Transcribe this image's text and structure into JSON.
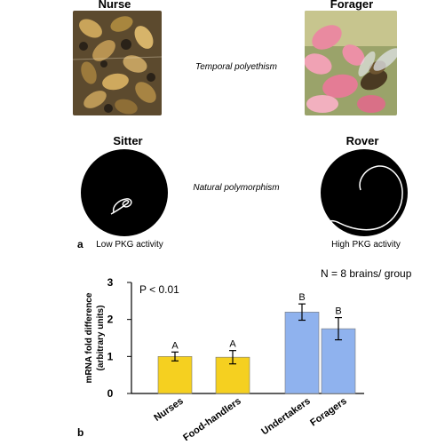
{
  "panel_a": {
    "nurse_label": "Nurse",
    "forager_label": "Forager",
    "temporal_label": "Temporal polyethism",
    "sitter_label": "Sitter",
    "rover_label": "Rover",
    "natural_label": "Natural polymorphism",
    "low_pkg": "Low PKG activity",
    "high_pkg": "High PKG activity",
    "panel_letter": "a"
  },
  "panel_b": {
    "panel_letter": "b",
    "n_label": "N = 8 brains/ group",
    "p_label": "P < 0.01"
  },
  "chart_data": {
    "type": "bar",
    "categories": [
      "Nurses",
      "Food-handlers",
      "Undertakers",
      "Foragers"
    ],
    "values": [
      1.0,
      0.98,
      2.2,
      1.75
    ],
    "errors": [
      0.12,
      0.18,
      0.22,
      0.3
    ],
    "group_letters": [
      "A",
      "A",
      "B",
      "B"
    ],
    "bar_colors": [
      "#f5d020",
      "#f5d020",
      "#8fb2ee",
      "#8fb2ee"
    ],
    "ylabel": "mRNA fold difference\n(arbitrary units)",
    "ylabel_line1": "mRNA fold difference",
    "ylabel_line2": "(arbitrary units)",
    "yticks": [
      "0",
      "1",
      "2",
      "3"
    ],
    "ylim": [
      0,
      3
    ]
  }
}
